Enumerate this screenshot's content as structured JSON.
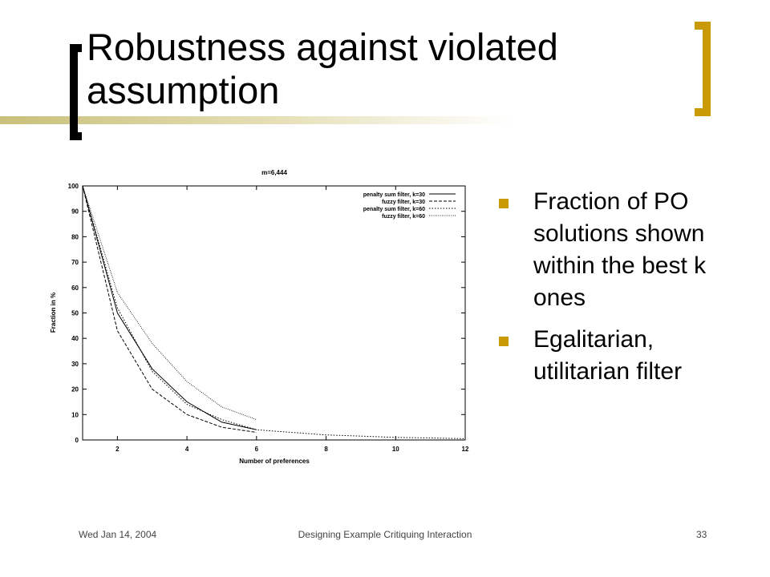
{
  "slide": {
    "title": "Robustness against violated assumption",
    "bullets": [
      "Fraction of PO solutions shown within the best k ones",
      "Egalitarian, utilitarian filter"
    ],
    "footer": {
      "date": "Wed Jan 14, 2004",
      "center": "Designing Example Critiquing Interaction",
      "page": "33"
    },
    "colors": {
      "accent": "#c99a06",
      "bar": "#c9c07a"
    }
  },
  "chart_data": {
    "type": "line",
    "title": "m=6,444",
    "xlabel": "Number of preferences",
    "ylabel": "Fraction in %",
    "xlim": [
      1,
      12
    ],
    "ylim": [
      0,
      100
    ],
    "xticks": [
      2,
      4,
      6,
      8,
      10,
      12
    ],
    "yticks": [
      0,
      10,
      20,
      30,
      40,
      50,
      60,
      70,
      80,
      90,
      100
    ],
    "legend_position": "top-right",
    "series": [
      {
        "name": "penalty sum filter, k=30",
        "dash": "solid",
        "x": [
          1,
          2,
          3,
          4,
          5,
          6
        ],
        "y": [
          100,
          50,
          28,
          15,
          7,
          4
        ]
      },
      {
        "name": "fuzzy filter, k=30",
        "dash": "dashed",
        "x": [
          1,
          2,
          3,
          4,
          5,
          6
        ],
        "y": [
          100,
          43,
          20,
          10,
          5,
          3
        ]
      },
      {
        "name": "penalty sum filter, k=60",
        "dash": "dotted",
        "x": [
          1,
          2,
          3,
          4,
          5,
          6,
          7,
          8,
          9,
          10,
          11,
          12
        ],
        "y": [
          100,
          52,
          27,
          14,
          8,
          4,
          3,
          2,
          1.5,
          1,
          0.8,
          0.5
        ]
      },
      {
        "name": "fuzzy filter, k=60",
        "dash": "fine-dotted",
        "x": [
          1,
          2,
          3,
          4,
          5,
          6
        ],
        "y": [
          100,
          58,
          38,
          23,
          13,
          8
        ]
      }
    ]
  }
}
